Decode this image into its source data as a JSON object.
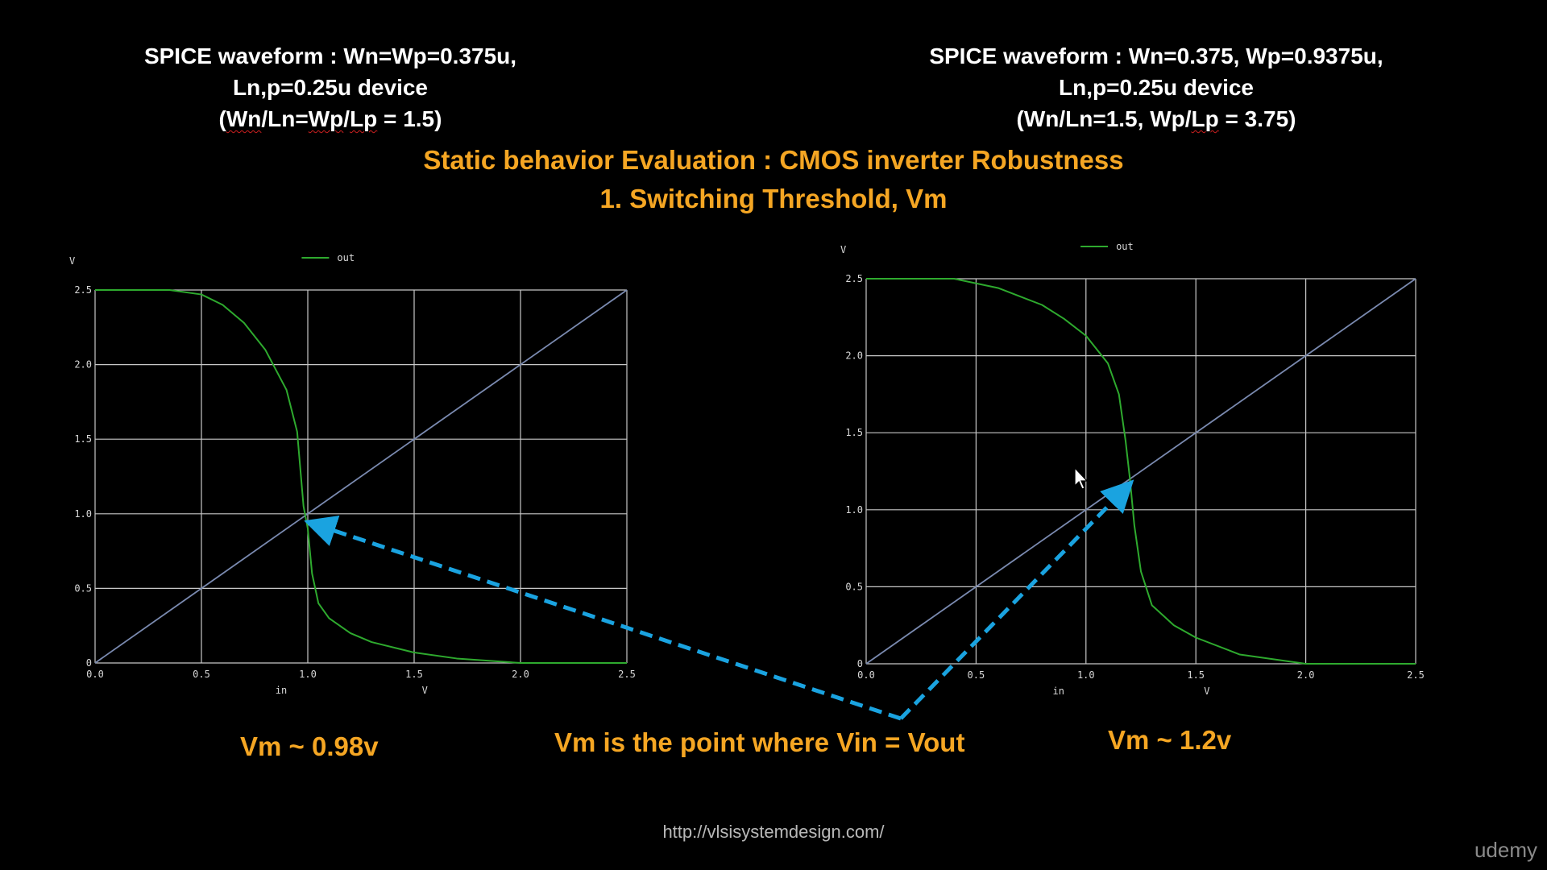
{
  "captions": {
    "left": {
      "line1": "SPICE waveform : Wn=Wp=0.375u,",
      "line2": "Ln,p=0.25u device",
      "line3_open": "(",
      "line3_wn": "Wn",
      "line3_mid": "/Ln=",
      "line3_wp": "Wp",
      "line3_slash": "/",
      "line3_lp": "Lp",
      "line3_end": " = 1.5)"
    },
    "right": {
      "line1": "SPICE waveform : Wn=0.375, Wp=0.9375u,",
      "line2": "Ln,p=0.25u device",
      "line3_pre": "(Wn/Ln=1.5, Wp/",
      "line3_lp": "Lp",
      "line3_end": " = 3.75)"
    }
  },
  "heading": {
    "main": "Static behavior Evaluation : CMOS inverter Robustness",
    "sub": "1. Switching Threshold, Vm"
  },
  "annotations": {
    "vm_left": "Vm ~ 0.98v",
    "vm_right": "Vm ~ 1.2v",
    "definition": "Vm is the point where Vin = Vout"
  },
  "footer": {
    "url": "http://vlsisystemdesign.com/",
    "brand": "udemy"
  },
  "colors": {
    "curve": "#2eaa2e",
    "reference_line": "#7a8ab0",
    "grid": "#c8c8c8",
    "arrow": "#1aa3e0",
    "heading": "#f5a623"
  },
  "icons": {
    "cursor": "mouse-pointer-icon"
  },
  "chart_data": [
    {
      "type": "line",
      "title": "",
      "xlabel": "in",
      "xunit": "V",
      "ylabel": "V",
      "xlim": [
        0,
        2.5
      ],
      "ylim": [
        0,
        2.5
      ],
      "xticks": [
        "0.0",
        "0.5",
        "1.0",
        "1.5",
        "2.0",
        "2.5"
      ],
      "yticks": [
        "0",
        "0.5",
        "1.0",
        "1.5",
        "2.0",
        "2.5"
      ],
      "grid": true,
      "legend": "top-center",
      "series": [
        {
          "name": "out",
          "x": [
            0,
            0.35,
            0.5,
            0.6,
            0.7,
            0.8,
            0.9,
            0.95,
            0.98,
            1.0,
            1.02,
            1.05,
            1.1,
            1.2,
            1.3,
            1.5,
            1.7,
            2.0,
            2.5
          ],
          "y": [
            2.5,
            2.5,
            2.47,
            2.4,
            2.28,
            2.1,
            1.83,
            1.55,
            1.05,
            0.9,
            0.6,
            0.4,
            0.3,
            0.2,
            0.14,
            0.07,
            0.03,
            0.0,
            0.0
          ]
        },
        {
          "x": [
            0,
            2.5
          ],
          "y": [
            0,
            2.5
          ]
        }
      ],
      "marked_point": {
        "x": 0.98,
        "y": 0.98
      }
    },
    {
      "type": "line",
      "title": "",
      "xlabel": "in",
      "xunit": "V",
      "ylabel": "V",
      "xlim": [
        0,
        2.5
      ],
      "ylim": [
        0,
        2.5
      ],
      "xticks": [
        "0.0",
        "0.5",
        "1.0",
        "1.5",
        "2.0",
        "2.5"
      ],
      "yticks": [
        "0",
        "0.5",
        "1.0",
        "1.5",
        "2.0",
        "2.5"
      ],
      "grid": true,
      "legend": "top-center",
      "series": [
        {
          "name": "out",
          "x": [
            0,
            0.4,
            0.6,
            0.8,
            0.9,
            1.0,
            1.1,
            1.15,
            1.18,
            1.2,
            1.22,
            1.25,
            1.3,
            1.4,
            1.5,
            1.7,
            2.0,
            2.5
          ],
          "y": [
            2.5,
            2.5,
            2.44,
            2.33,
            2.24,
            2.13,
            1.95,
            1.75,
            1.45,
            1.2,
            0.9,
            0.6,
            0.38,
            0.25,
            0.17,
            0.06,
            0.0,
            0.0
          ]
        },
        {
          "x": [
            0,
            2.5
          ],
          "y": [
            0,
            2.5
          ]
        }
      ],
      "marked_point": {
        "x": 1.2,
        "y": 1.2
      }
    }
  ]
}
